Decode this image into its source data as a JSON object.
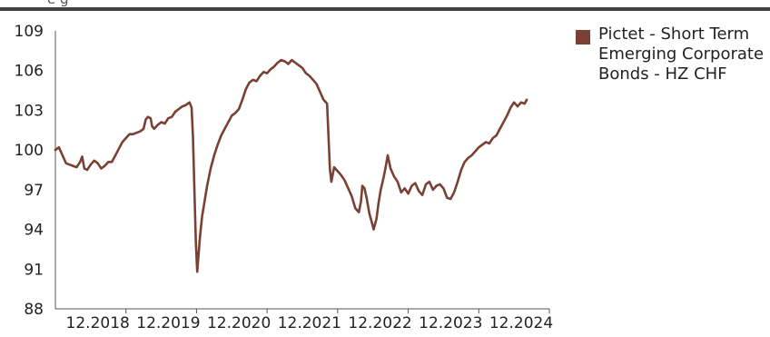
{
  "header": {
    "title_fragment": "e  g"
  },
  "colors": {
    "series": "#7a4034",
    "axis": "#555555",
    "rule": "#3f3f3f"
  },
  "chart_data": {
    "type": "line",
    "title": "",
    "xlabel": "",
    "ylabel": "",
    "y_ticks": [
      "109",
      "106",
      "103",
      "100",
      "97",
      "94",
      "91",
      "88"
    ],
    "ylim": [
      88,
      109
    ],
    "x_ticks": [
      {
        "label": "12.2018",
        "t": 2018.95
      },
      {
        "label": "12.2019",
        "t": 2019.95
      },
      {
        "label": "12.2020",
        "t": 2020.95
      },
      {
        "label": "12.2021",
        "t": 2021.95
      },
      {
        "label": "12.2022",
        "t": 2022.95
      },
      {
        "label": "12.2023",
        "t": 2023.95
      },
      {
        "label": "12.2024",
        "t": 2024.95
      }
    ],
    "xlim": [
      2017.95,
      2024.95
    ],
    "grid": false,
    "legend_position": "top-right",
    "series": [
      {
        "name": "Pictet - Short Term Emerging Corporate Bonds - HZ CHF",
        "points": [
          [
            2017.95,
            100.0
          ],
          [
            2018.0,
            100.2
          ],
          [
            2018.05,
            99.6
          ],
          [
            2018.1,
            99.0
          ],
          [
            2018.15,
            98.9
          ],
          [
            2018.2,
            98.8
          ],
          [
            2018.25,
            98.7
          ],
          [
            2018.3,
            99.1
          ],
          [
            2018.33,
            99.5
          ],
          [
            2018.36,
            98.6
          ],
          [
            2018.4,
            98.5
          ],
          [
            2018.45,
            98.9
          ],
          [
            2018.5,
            99.2
          ],
          [
            2018.55,
            99.0
          ],
          [
            2018.6,
            98.6
          ],
          [
            2018.65,
            98.8
          ],
          [
            2018.7,
            99.1
          ],
          [
            2018.75,
            99.1
          ],
          [
            2018.8,
            99.6
          ],
          [
            2018.85,
            100.1
          ],
          [
            2018.9,
            100.6
          ],
          [
            2018.95,
            100.9
          ],
          [
            2019.0,
            101.2
          ],
          [
            2019.05,
            101.2
          ],
          [
            2019.1,
            101.3
          ],
          [
            2019.15,
            101.4
          ],
          [
            2019.2,
            101.6
          ],
          [
            2019.23,
            102.3
          ],
          [
            2019.26,
            102.5
          ],
          [
            2019.3,
            102.4
          ],
          [
            2019.32,
            101.8
          ],
          [
            2019.35,
            101.6
          ],
          [
            2019.4,
            101.9
          ],
          [
            2019.45,
            102.1
          ],
          [
            2019.5,
            102.0
          ],
          [
            2019.55,
            102.4
          ],
          [
            2019.6,
            102.5
          ],
          [
            2019.65,
            102.9
          ],
          [
            2019.7,
            103.1
          ],
          [
            2019.75,
            103.3
          ],
          [
            2019.8,
            103.4
          ],
          [
            2019.85,
            103.6
          ],
          [
            2019.88,
            103.2
          ],
          [
            2019.9,
            101.0
          ],
          [
            2019.92,
            97.0
          ],
          [
            2019.94,
            93.0
          ],
          [
            2019.96,
            90.8
          ],
          [
            2019.98,
            92.2
          ],
          [
            2020.0,
            93.5
          ],
          [
            2020.03,
            95.0
          ],
          [
            2020.06,
            96.0
          ],
          [
            2020.1,
            97.3
          ],
          [
            2020.15,
            98.6
          ],
          [
            2020.2,
            99.6
          ],
          [
            2020.25,
            100.4
          ],
          [
            2020.3,
            101.1
          ],
          [
            2020.35,
            101.6
          ],
          [
            2020.4,
            102.1
          ],
          [
            2020.45,
            102.6
          ],
          [
            2020.5,
            102.8
          ],
          [
            2020.55,
            103.1
          ],
          [
            2020.6,
            103.8
          ],
          [
            2020.65,
            104.6
          ],
          [
            2020.7,
            105.1
          ],
          [
            2020.75,
            105.3
          ],
          [
            2020.8,
            105.2
          ],
          [
            2020.85,
            105.6
          ],
          [
            2020.9,
            105.9
          ],
          [
            2020.95,
            105.8
          ],
          [
            2021.0,
            106.1
          ],
          [
            2021.05,
            106.3
          ],
          [
            2021.1,
            106.6
          ],
          [
            2021.15,
            106.8
          ],
          [
            2021.2,
            106.7
          ],
          [
            2021.25,
            106.5
          ],
          [
            2021.3,
            106.8
          ],
          [
            2021.35,
            106.6
          ],
          [
            2021.4,
            106.4
          ],
          [
            2021.45,
            106.2
          ],
          [
            2021.5,
            105.8
          ],
          [
            2021.55,
            105.6
          ],
          [
            2021.6,
            105.3
          ],
          [
            2021.65,
            105.0
          ],
          [
            2021.7,
            104.4
          ],
          [
            2021.75,
            103.8
          ],
          [
            2021.8,
            103.5
          ],
          [
            2021.82,
            101.0
          ],
          [
            2021.84,
            98.6
          ],
          [
            2021.86,
            97.6
          ],
          [
            2021.9,
            98.7
          ],
          [
            2021.95,
            98.4
          ],
          [
            2022.0,
            98.1
          ],
          [
            2022.05,
            97.7
          ],
          [
            2022.1,
            97.1
          ],
          [
            2022.15,
            96.5
          ],
          [
            2022.2,
            95.6
          ],
          [
            2022.25,
            95.3
          ],
          [
            2022.28,
            96.1
          ],
          [
            2022.3,
            97.3
          ],
          [
            2022.33,
            97.1
          ],
          [
            2022.36,
            96.4
          ],
          [
            2022.4,
            95.2
          ],
          [
            2022.43,
            94.6
          ],
          [
            2022.46,
            94.0
          ],
          [
            2022.5,
            94.8
          ],
          [
            2022.53,
            96.0
          ],
          [
            2022.56,
            97.0
          ],
          [
            2022.6,
            97.9
          ],
          [
            2022.63,
            98.7
          ],
          [
            2022.66,
            99.6
          ],
          [
            2022.7,
            98.6
          ],
          [
            2022.75,
            98.0
          ],
          [
            2022.8,
            97.6
          ],
          [
            2022.85,
            96.8
          ],
          [
            2022.9,
            97.1
          ],
          [
            2022.95,
            96.7
          ],
          [
            2023.0,
            97.3
          ],
          [
            2023.05,
            97.5
          ],
          [
            2023.1,
            96.9
          ],
          [
            2023.15,
            96.6
          ],
          [
            2023.2,
            97.4
          ],
          [
            2023.25,
            97.6
          ],
          [
            2023.3,
            97.0
          ],
          [
            2023.35,
            97.3
          ],
          [
            2023.4,
            97.4
          ],
          [
            2023.45,
            97.1
          ],
          [
            2023.5,
            96.4
          ],
          [
            2023.55,
            96.3
          ],
          [
            2023.6,
            96.8
          ],
          [
            2023.65,
            97.6
          ],
          [
            2023.7,
            98.5
          ],
          [
            2023.75,
            99.1
          ],
          [
            2023.8,
            99.4
          ],
          [
            2023.85,
            99.6
          ],
          [
            2023.9,
            99.9
          ],
          [
            2023.95,
            100.2
          ],
          [
            2024.0,
            100.4
          ],
          [
            2024.05,
            100.6
          ],
          [
            2024.1,
            100.5
          ],
          [
            2024.15,
            100.9
          ],
          [
            2024.2,
            101.1
          ],
          [
            2024.25,
            101.6
          ],
          [
            2024.3,
            102.1
          ],
          [
            2024.35,
            102.6
          ],
          [
            2024.4,
            103.2
          ],
          [
            2024.45,
            103.6
          ],
          [
            2024.5,
            103.3
          ],
          [
            2024.55,
            103.6
          ],
          [
            2024.6,
            103.5
          ],
          [
            2024.63,
            103.8
          ]
        ]
      }
    ]
  }
}
